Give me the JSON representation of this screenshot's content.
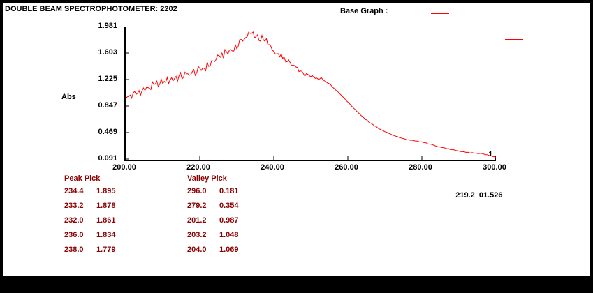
{
  "window": {
    "title": "DOUBLE BEAM SPECTROPHOTOMETER: 2202"
  },
  "header": {
    "base_graph_label": "Base Graph :"
  },
  "colors": {
    "curve": "#ff0000",
    "pick_text": "#8b0000",
    "axis": "#000000"
  },
  "chart_data": {
    "type": "line",
    "title": "",
    "xlabel": "",
    "ylabel": "Abs",
    "xlim": [
      200,
      300
    ],
    "ylim": [
      0.091,
      1.981
    ],
    "x_ticks": [
      "200.00",
      "220.00",
      "240.00",
      "260.00",
      "280.00",
      "300.00"
    ],
    "y_ticks": [
      "1.981",
      "1.603",
      "1.225",
      "0.847",
      "0.469",
      "0.091"
    ],
    "grid": false,
    "legend_position": "right",
    "graph_number": "1",
    "series": [
      {
        "name": "base-graph",
        "color": "#ff0000",
        "points": [
          [
            200,
            0.97
          ],
          [
            202,
            1.01
          ],
          [
            204,
            1.06
          ],
          [
            206,
            1.11
          ],
          [
            208,
            1.15
          ],
          [
            210,
            1.19
          ],
          [
            212,
            1.23
          ],
          [
            214,
            1.26
          ],
          [
            216,
            1.29
          ],
          [
            218,
            1.32
          ],
          [
            220,
            1.36
          ],
          [
            222,
            1.42
          ],
          [
            224,
            1.5
          ],
          [
            226,
            1.58
          ],
          [
            228,
            1.63
          ],
          [
            230,
            1.7
          ],
          [
            231,
            1.76
          ],
          [
            232,
            1.82
          ],
          [
            233,
            1.86
          ],
          [
            234,
            1.88
          ],
          [
            235,
            1.86
          ],
          [
            236,
            1.82
          ],
          [
            237,
            1.79
          ],
          [
            238,
            1.76
          ],
          [
            239,
            1.7
          ],
          [
            240,
            1.64
          ],
          [
            241,
            1.59
          ],
          [
            242,
            1.55
          ],
          [
            244,
            1.47
          ],
          [
            246,
            1.39
          ],
          [
            248,
            1.31
          ],
          [
            250,
            1.27
          ],
          [
            252,
            1.25
          ],
          [
            253,
            1.24
          ],
          [
            254,
            1.21
          ],
          [
            255,
            1.17
          ],
          [
            256,
            1.12
          ],
          [
            258,
            1.02
          ],
          [
            260,
            0.91
          ],
          [
            262,
            0.8
          ],
          [
            264,
            0.7
          ],
          [
            266,
            0.615
          ],
          [
            268,
            0.545
          ],
          [
            270,
            0.49
          ],
          [
            272,
            0.445
          ],
          [
            274,
            0.405
          ],
          [
            276,
            0.375
          ],
          [
            278,
            0.358
          ],
          [
            280,
            0.342
          ],
          [
            282,
            0.315
          ],
          [
            284,
            0.285
          ],
          [
            286,
            0.26
          ],
          [
            288,
            0.235
          ],
          [
            290,
            0.213
          ],
          [
            292,
            0.197
          ],
          [
            294,
            0.186
          ],
          [
            296,
            0.178
          ],
          [
            298,
            0.155
          ],
          [
            300,
            0.128
          ]
        ]
      }
    ],
    "noise": {
      "amplitude": 0.045,
      "min": 0.004,
      "fade_start": 241,
      "fade_end": 257,
      "step": 0.4
    }
  },
  "peak_pick": {
    "label": "Peak Pick",
    "rows": [
      [
        "234.4",
        "1.895"
      ],
      [
        "233.2",
        "1.878"
      ],
      [
        "232.0",
        "1.861"
      ],
      [
        "236.0",
        "1.834"
      ],
      [
        "238.0",
        "1.779"
      ]
    ]
  },
  "valley_pick": {
    "label": "Valley Pick",
    "rows": [
      [
        "296.0",
        "0.181"
      ],
      [
        "279.2",
        "0.354"
      ],
      [
        "201.2",
        "0.987"
      ],
      [
        "203.2",
        "1.048"
      ],
      [
        "204.0",
        "1.069"
      ]
    ]
  },
  "cursor_readout": {
    "wavelength": "219.2",
    "abs": "01.526"
  }
}
